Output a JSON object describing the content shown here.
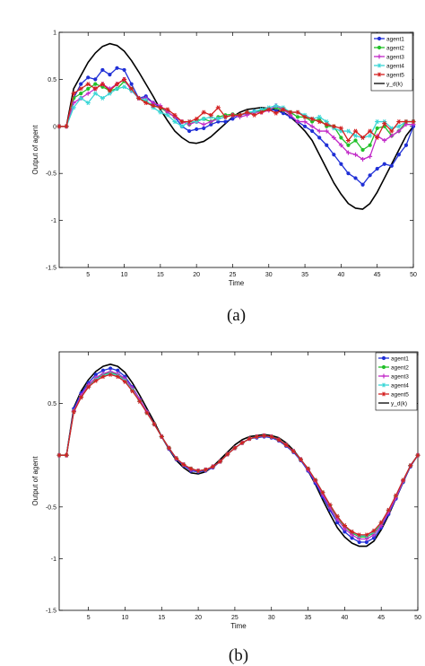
{
  "chart_data": [
    {
      "type": "line",
      "caption": "(a)",
      "xlabel": "Time",
      "ylabel": "Output of agent",
      "xlim": [
        1,
        50
      ],
      "ylim": [
        -1.5,
        1
      ],
      "xticks": [
        "5",
        "10",
        "15",
        "20",
        "25",
        "30",
        "35",
        "40",
        "45",
        "50"
      ],
      "yticks": [
        "-1.5",
        "-1",
        "-0.5",
        "0",
        "0.5",
        "1"
      ],
      "grid": false,
      "legend": "top-right",
      "x": [
        1,
        2,
        3,
        4,
        5,
        6,
        7,
        8,
        9,
        10,
        11,
        12,
        13,
        14,
        15,
        16,
        17,
        18,
        19,
        20,
        21,
        22,
        23,
        24,
        25,
        26,
        27,
        28,
        29,
        30,
        31,
        32,
        33,
        34,
        35,
        36,
        37,
        38,
        39,
        40,
        41,
        42,
        43,
        44,
        45,
        46,
        47,
        48,
        49,
        50
      ],
      "series": [
        {
          "name": "agent1",
          "color": "#1f2fd6",
          "marker": "circle",
          "values": [
            0,
            0,
            0.3,
            0.45,
            0.52,
            0.5,
            0.6,
            0.55,
            0.62,
            0.6,
            0.45,
            0.3,
            0.32,
            0.25,
            0.2,
            0.15,
            0.1,
            0,
            -0.05,
            -0.03,
            -0.02,
            0.02,
            0.05,
            0.05,
            0.08,
            0.12,
            0.14,
            0.16,
            0.17,
            0.18,
            0.17,
            0.14,
            0.1,
            0.05,
            0,
            -0.05,
            -0.12,
            -0.2,
            -0.3,
            -0.4,
            -0.5,
            -0.55,
            -0.62,
            -0.52,
            -0.45,
            -0.4,
            -0.42,
            -0.3,
            -0.2,
            0
          ]
        },
        {
          "name": "agent2",
          "color": "#22c02a",
          "marker": "circle",
          "values": [
            0,
            0,
            0.3,
            0.35,
            0.4,
            0.45,
            0.42,
            0.38,
            0.4,
            0.48,
            0.4,
            0.3,
            0.27,
            0.22,
            0.2,
            0.15,
            0.1,
            0.05,
            0.02,
            0.06,
            0.08,
            0.05,
            0.1,
            0.12,
            0.13,
            0.12,
            0.15,
            0.15,
            0.17,
            0.18,
            0.2,
            0.17,
            0.15,
            0.1,
            0.1,
            0.05,
            0.08,
            0,
            0,
            -0.12,
            -0.2,
            -0.15,
            -0.25,
            -0.2,
            -0.02,
            0,
            -0.1,
            -0.05,
            0.05,
            0.05
          ]
        },
        {
          "name": "agent3",
          "color": "#c22bc8",
          "marker": "plus",
          "values": [
            0,
            0,
            0.25,
            0.3,
            0.35,
            0.4,
            0.45,
            0.4,
            0.45,
            0.5,
            0.38,
            0.3,
            0.3,
            0.25,
            0.22,
            0.15,
            0.1,
            0.05,
            0.02,
            0.05,
            0.02,
            0.05,
            0.08,
            0.1,
            0.12,
            0.1,
            0.12,
            0.15,
            0.15,
            0.17,
            0.22,
            0.18,
            0.12,
            0.05,
            0.05,
            0,
            -0.05,
            -0.05,
            -0.12,
            -0.2,
            -0.28,
            -0.3,
            -0.35,
            -0.32,
            -0.1,
            -0.15,
            -0.1,
            -0.05,
            0.02,
            0.02
          ]
        },
        {
          "name": "agent4",
          "color": "#3ad6d6",
          "marker": "star",
          "values": [
            0,
            0,
            0.2,
            0.3,
            0.25,
            0.35,
            0.3,
            0.35,
            0.4,
            0.42,
            0.38,
            0.3,
            0.28,
            0.2,
            0.15,
            0.12,
            0.05,
            0,
            0.05,
            0.05,
            0.08,
            0.1,
            0.08,
            0.1,
            0.12,
            0.12,
            0.15,
            0.16,
            0.18,
            0.2,
            0.22,
            0.2,
            0.15,
            0.15,
            0.12,
            0.08,
            0.1,
            0.05,
            -0.02,
            -0.05,
            -0.05,
            -0.1,
            -0.12,
            -0.1,
            0.05,
            0.05,
            -0.02,
            0,
            0.05,
            0.05
          ]
        },
        {
          "name": "agent5",
          "color": "#d42020",
          "marker": "star",
          "values": [
            0,
            0,
            0.35,
            0.4,
            0.45,
            0.4,
            0.45,
            0.38,
            0.45,
            0.5,
            0.4,
            0.3,
            0.25,
            0.22,
            0.2,
            0.18,
            0.12,
            0.05,
            0.05,
            0.08,
            0.15,
            0.12,
            0.2,
            0.1,
            0.12,
            0.12,
            0.15,
            0.12,
            0.15,
            0.18,
            0.14,
            0.18,
            0.15,
            0.15,
            0.1,
            0.08,
            0.05,
            0.02,
            0,
            -0.02,
            -0.15,
            -0.05,
            -0.12,
            -0.05,
            -0.12,
            0.03,
            -0.05,
            0.05,
            0.05,
            0.05
          ]
        },
        {
          "name": "y_d(k)",
          "color": "#000000",
          "marker": "none",
          "values": [
            0,
            0,
            0.4,
            0.54,
            0.68,
            0.78,
            0.85,
            0.88,
            0.86,
            0.8,
            0.7,
            0.58,
            0.45,
            0.32,
            0.18,
            0.06,
            -0.05,
            -0.12,
            -0.17,
            -0.18,
            -0.16,
            -0.11,
            -0.04,
            0.03,
            0.1,
            0.15,
            0.18,
            0.19,
            0.2,
            0.19,
            0.18,
            0.15,
            0.1,
            0.03,
            -0.05,
            -0.15,
            -0.3,
            -0.45,
            -0.6,
            -0.72,
            -0.82,
            -0.87,
            -0.88,
            -0.82,
            -0.7,
            -0.55,
            -0.4,
            -0.25,
            -0.1,
            0
          ]
        }
      ]
    },
    {
      "type": "line",
      "caption": "(b)",
      "xlabel": "Time",
      "ylabel": "Output of agent",
      "xlim": [
        1,
        50
      ],
      "ylim": [
        -1.5,
        1
      ],
      "xticks": [
        "5",
        "10",
        "15",
        "20",
        "25",
        "30",
        "35",
        "40",
        "45",
        "50"
      ],
      "yticks": [
        "-1.5",
        "-1",
        "-0.5",
        "0.5"
      ],
      "grid": false,
      "legend": "top-right",
      "x": [
        1,
        2,
        3,
        4,
        5,
        6,
        7,
        8,
        9,
        10,
        11,
        12,
        13,
        14,
        15,
        16,
        17,
        18,
        19,
        20,
        21,
        22,
        23,
        24,
        25,
        26,
        27,
        28,
        29,
        30,
        31,
        32,
        33,
        34,
        35,
        36,
        37,
        38,
        39,
        40,
        41,
        42,
        43,
        44,
        45,
        46,
        47,
        48,
        49,
        50
      ],
      "series": [
        {
          "name": "agent1",
          "color": "#1f2fd6",
          "marker": "circle",
          "values": [
            0,
            0,
            0.45,
            0.6,
            0.7,
            0.78,
            0.82,
            0.84,
            0.82,
            0.76,
            0.66,
            0.54,
            0.42,
            0.3,
            0.18,
            0.06,
            -0.04,
            -0.1,
            -0.15,
            -0.16,
            -0.15,
            -0.12,
            -0.06,
            0.01,
            0.07,
            0.12,
            0.16,
            0.17,
            0.18,
            0.17,
            0.14,
            0.09,
            0.03,
            -0.05,
            -0.15,
            -0.27,
            -0.4,
            -0.53,
            -0.65,
            -0.74,
            -0.8,
            -0.84,
            -0.84,
            -0.8,
            -0.7,
            -0.57,
            -0.42,
            -0.26,
            -0.11,
            0
          ]
        },
        {
          "name": "agent2",
          "color": "#22c02a",
          "marker": "circle",
          "values": [
            0,
            0,
            0.43,
            0.57,
            0.67,
            0.74,
            0.78,
            0.8,
            0.78,
            0.73,
            0.64,
            0.53,
            0.41,
            0.3,
            0.18,
            0.07,
            -0.03,
            -0.09,
            -0.13,
            -0.15,
            -0.14,
            -0.11,
            -0.06,
            0.01,
            0.07,
            0.12,
            0.16,
            0.18,
            0.19,
            0.18,
            0.15,
            0.1,
            0.04,
            -0.04,
            -0.13,
            -0.24,
            -0.36,
            -0.49,
            -0.6,
            -0.69,
            -0.75,
            -0.79,
            -0.79,
            -0.75,
            -0.66,
            -0.54,
            -0.4,
            -0.25,
            -0.1,
            0
          ]
        },
        {
          "name": "agent3",
          "color": "#c22bc8",
          "marker": "plus",
          "values": [
            0,
            0,
            0.43,
            0.58,
            0.68,
            0.75,
            0.79,
            0.81,
            0.79,
            0.74,
            0.65,
            0.54,
            0.42,
            0.3,
            0.18,
            0.07,
            -0.03,
            -0.09,
            -0.14,
            -0.15,
            -0.14,
            -0.11,
            -0.06,
            0.01,
            0.07,
            0.12,
            0.16,
            0.18,
            0.19,
            0.18,
            0.15,
            0.1,
            0.04,
            -0.04,
            -0.14,
            -0.25,
            -0.38,
            -0.51,
            -0.62,
            -0.71,
            -0.77,
            -0.81,
            -0.81,
            -0.77,
            -0.68,
            -0.55,
            -0.41,
            -0.25,
            -0.1,
            0
          ]
        },
        {
          "name": "agent4",
          "color": "#3ad6d6",
          "marker": "star",
          "values": [
            0,
            0,
            0.42,
            0.56,
            0.66,
            0.73,
            0.77,
            0.79,
            0.77,
            0.72,
            0.63,
            0.52,
            0.41,
            0.3,
            0.18,
            0.07,
            -0.03,
            -0.09,
            -0.13,
            -0.15,
            -0.14,
            -0.11,
            -0.06,
            0.01,
            0.07,
            0.12,
            0.16,
            0.18,
            0.19,
            0.18,
            0.15,
            0.1,
            0.04,
            -0.04,
            -0.13,
            -0.24,
            -0.36,
            -0.48,
            -0.59,
            -0.68,
            -0.74,
            -0.78,
            -0.78,
            -0.74,
            -0.65,
            -0.53,
            -0.39,
            -0.24,
            -0.1,
            0
          ]
        },
        {
          "name": "agent5",
          "color": "#d42020",
          "marker": "star",
          "values": [
            0,
            0,
            0.42,
            0.56,
            0.66,
            0.72,
            0.76,
            0.78,
            0.76,
            0.71,
            0.62,
            0.52,
            0.41,
            0.3,
            0.18,
            0.07,
            -0.03,
            -0.09,
            -0.13,
            -0.15,
            -0.14,
            -0.11,
            -0.06,
            0.01,
            0.07,
            0.12,
            0.16,
            0.18,
            0.19,
            0.18,
            0.15,
            0.1,
            0.04,
            -0.04,
            -0.13,
            -0.24,
            -0.36,
            -0.48,
            -0.59,
            -0.68,
            -0.74,
            -0.77,
            -0.77,
            -0.73,
            -0.65,
            -0.53,
            -0.39,
            -0.24,
            -0.1,
            0
          ]
        },
        {
          "name": "y_d(k)",
          "color": "#000000",
          "marker": "none",
          "values": [
            0,
            0,
            0.46,
            0.62,
            0.73,
            0.81,
            0.86,
            0.88,
            0.86,
            0.8,
            0.7,
            0.58,
            0.45,
            0.32,
            0.18,
            0.06,
            -0.05,
            -0.12,
            -0.17,
            -0.18,
            -0.16,
            -0.11,
            -0.04,
            0.03,
            0.1,
            0.15,
            0.18,
            0.19,
            0.2,
            0.19,
            0.17,
            0.12,
            0.05,
            -0.04,
            -0.15,
            -0.28,
            -0.43,
            -0.57,
            -0.7,
            -0.79,
            -0.85,
            -0.88,
            -0.88,
            -0.83,
            -0.72,
            -0.58,
            -0.42,
            -0.26,
            -0.1,
            0
          ]
        }
      ]
    }
  ]
}
